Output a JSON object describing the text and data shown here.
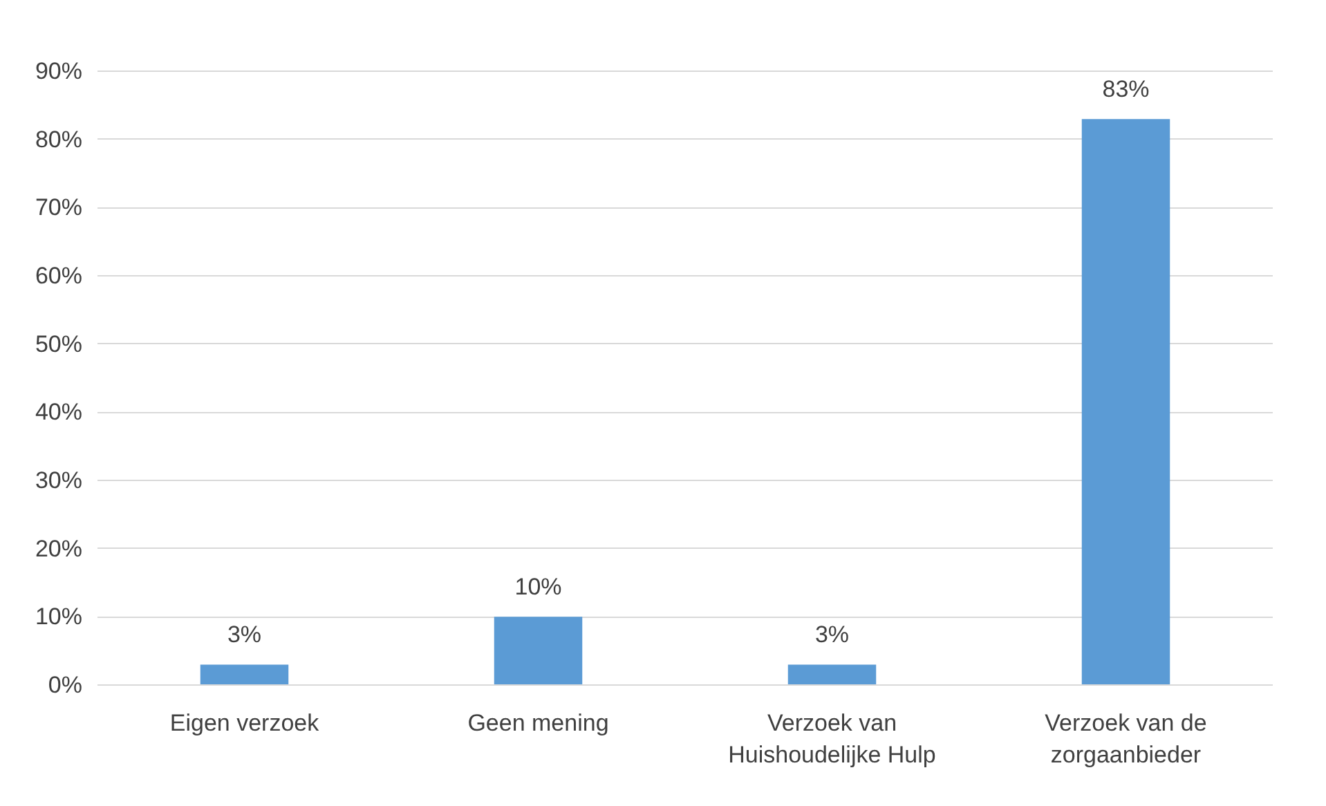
{
  "chart_data": {
    "type": "bar",
    "categories": [
      "Eigen verzoek",
      "Geen mening",
      "Verzoek van Huishoudelijke Hulp",
      "Verzoek van de zorgaanbieder"
    ],
    "values": [
      3,
      10,
      3,
      83
    ],
    "value_labels": [
      "3%",
      "10%",
      "3%",
      "83%"
    ],
    "color": "#5b9bd5",
    "ylim": [
      0,
      90
    ],
    "yticks": [
      {
        "value": 0,
        "label": "0%"
      },
      {
        "value": 10,
        "label": "10%"
      },
      {
        "value": 20,
        "label": "20%"
      },
      {
        "value": 30,
        "label": "30%"
      },
      {
        "value": 40,
        "label": "40%"
      },
      {
        "value": 50,
        "label": "50%"
      },
      {
        "value": 60,
        "label": "60%"
      },
      {
        "value": 70,
        "label": "70%"
      },
      {
        "value": 80,
        "label": "80%"
      },
      {
        "value": 90,
        "label": "90%"
      }
    ],
    "grid": "y"
  }
}
